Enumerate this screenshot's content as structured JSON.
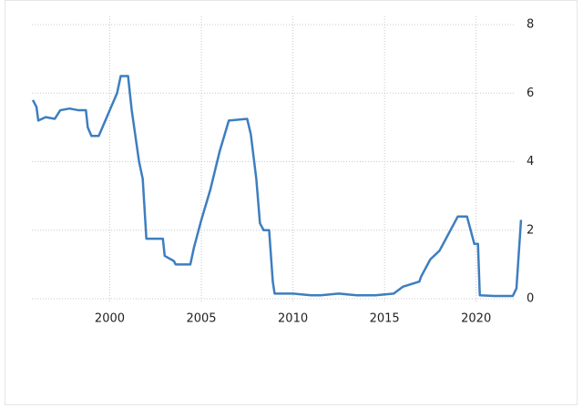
{
  "chart_data": {
    "type": "line",
    "x": [
      1995.8,
      1996.0,
      1996.1,
      1996.5,
      1997.0,
      1997.3,
      1997.8,
      1998.3,
      1998.7,
      1998.8,
      1999.0,
      1999.4,
      1999.6,
      2000.0,
      2000.4,
      2000.6,
      2001.0,
      2001.2,
      2001.6,
      2001.8,
      2002.0,
      2002.9,
      2003.0,
      2003.5,
      2003.6,
      2004.4,
      2004.6,
      2005.0,
      2005.5,
      2006.0,
      2006.5,
      2007.5,
      2007.7,
      2008.0,
      2008.2,
      2008.4,
      2008.7,
      2008.9,
      2009.0,
      2010.0,
      2011.0,
      2011.5,
      2012.5,
      2013.5,
      2014.5,
      2015.5,
      2016.0,
      2016.9,
      2017.0,
      2017.5,
      2018.0,
      2018.5,
      2019.0,
      2019.5,
      2019.7,
      2019.9,
      2020.1,
      2020.2,
      2021.0,
      2022.0,
      2022.2,
      2022.45
    ],
    "series": [
      {
        "color": "#3d7ebf",
        "values": [
          5.8,
          5.6,
          5.2,
          5.3,
          5.25,
          5.5,
          5.55,
          5.5,
          5.5,
          5.0,
          4.75,
          4.75,
          5.0,
          5.5,
          6.0,
          6.5,
          6.5,
          5.5,
          4.0,
          3.5,
          1.75,
          1.75,
          1.25,
          1.1,
          1.0,
          1.0,
          1.5,
          2.3,
          3.2,
          4.3,
          5.2,
          5.25,
          4.8,
          3.5,
          2.2,
          2.0,
          2.0,
          0.5,
          0.15,
          0.15,
          0.1,
          0.1,
          0.15,
          0.1,
          0.1,
          0.15,
          0.35,
          0.5,
          0.65,
          1.15,
          1.4,
          1.9,
          2.4,
          2.4,
          2.0,
          1.6,
          1.6,
          0.1,
          0.08,
          0.08,
          0.3,
          2.3
        ]
      }
    ],
    "xlim": [
      1995.75,
      2022.75
    ],
    "xticks": [
      2000,
      2005,
      2010,
      2015,
      2020
    ],
    "ylim": [
      0,
      8
    ],
    "yticks": [
      0,
      2,
      4,
      6,
      8
    ],
    "grid": true
  }
}
